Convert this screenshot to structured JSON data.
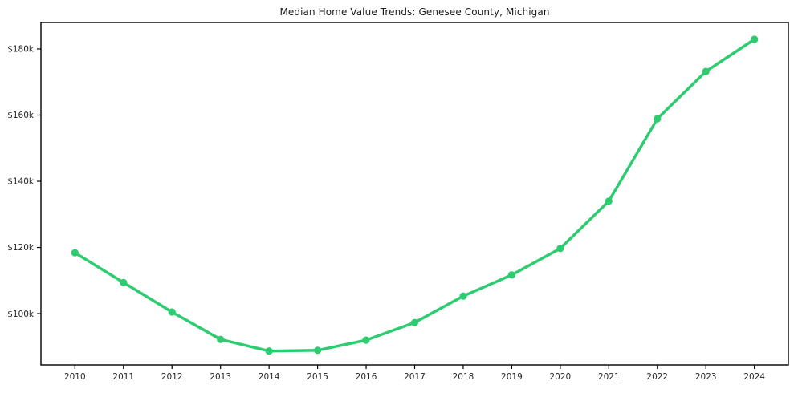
{
  "chart_data": {
    "type": "line",
    "title": "Median Home Value Trends: Genesee County, Michigan",
    "xlabel": "",
    "ylabel": "",
    "x": [
      2010,
      2011,
      2012,
      2013,
      2014,
      2015,
      2016,
      2017,
      2018,
      2019,
      2020,
      2021,
      2022,
      2023,
      2024
    ],
    "series": [
      {
        "name": "Median Home Value",
        "values": [
          118400,
          109400,
          100500,
          92200,
          88700,
          88900,
          92000,
          97300,
          105300,
          111700,
          119700,
          134000,
          158900,
          173200,
          182900
        ]
      }
    ],
    "xtick_labels": [
      "2010",
      "2011",
      "2012",
      "2013",
      "2014",
      "2015",
      "2016",
      "2017",
      "2018",
      "2019",
      "2020",
      "2021",
      "2022",
      "2023",
      "2024"
    ],
    "yticks": [
      100000,
      120000,
      140000,
      160000,
      180000
    ],
    "ytick_labels": [
      "$100k",
      "$120k",
      "$140k",
      "$160k",
      "$180k"
    ],
    "xlim": [
      2009.3,
      2024.7
    ],
    "ylim": [
      84500,
      188000
    ],
    "grid": false,
    "legend_position": "none",
    "line_color": "#2ecc71",
    "marker": "circle",
    "spine_color": "#000000",
    "tick_text_color": "#262626",
    "background_color": "#ffffff"
  }
}
